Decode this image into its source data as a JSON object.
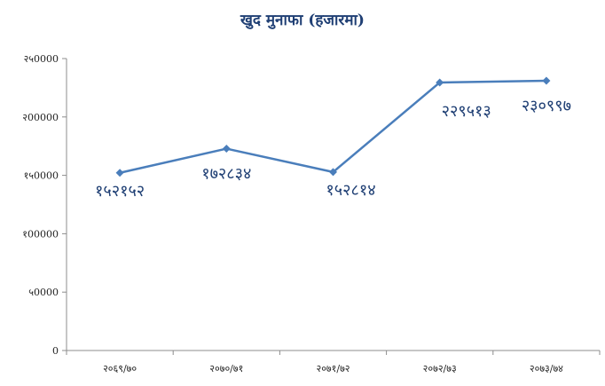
{
  "chart_data": {
    "type": "line",
    "title": "खुद मुनाफा (हजारमा)",
    "xlabel": "",
    "ylabel": "",
    "categories": [
      "२०६९/७०",
      "२०७०/७१",
      "२०७१/७२",
      "२०७२/७३",
      "२०७३/७४"
    ],
    "series": [
      {
        "values": [
          152152,
          172834,
          152814,
          229513,
          230997
        ],
        "labels": [
          "१५२१५२",
          "१७२८३४",
          "१५२८१४",
          "२२९५१३",
          "२३०९९७"
        ]
      }
    ],
    "ylim": [
      0,
      250000
    ],
    "yticks": [
      0,
      50000,
      100000,
      150000,
      200000,
      250000
    ],
    "ytick_labels": [
      "0",
      "५0000",
      "१00000",
      "१५0000",
      "२00000",
      "२५0000"
    ],
    "grid": false,
    "legend": "none",
    "colors": {
      "line": "#4a7ebb",
      "label": "#1f3f74",
      "axis": "#8c8c8c"
    }
  }
}
